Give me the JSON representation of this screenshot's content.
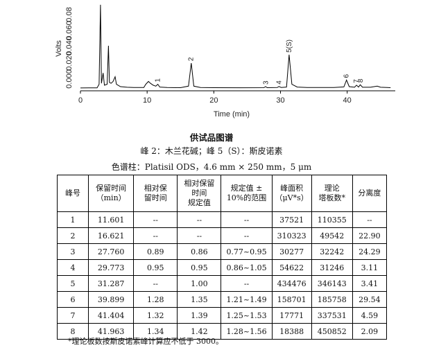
{
  "chart_data": {
    "type": "line",
    "xlabel": "Time (min)",
    "ylabel": "Volts",
    "x_ticks": [
      0,
      10,
      20,
      30,
      40
    ],
    "y_ticks": [
      "0.000",
      "0.020",
      "0.040",
      "0.060",
      "0.08"
    ],
    "xlim": [
      0,
      47
    ],
    "ylim": [
      0,
      0.09
    ],
    "peak_labels": [
      {
        "label": "1",
        "x": 11.6
      },
      {
        "label": "2",
        "x": 16.6
      },
      {
        "label": "3",
        "x": 27.8
      },
      {
        "label": "4",
        "x": 29.8
      },
      {
        "label": "5(S)",
        "x": 31.3
      },
      {
        "label": "6",
        "x": 39.9
      },
      {
        "label": "7",
        "x": 41.4
      },
      {
        "label": "8",
        "x": 42.0
      }
    ],
    "trace": [
      [
        0,
        0.0001
      ],
      [
        2.5,
        0.0002
      ],
      [
        2.8,
        0.004
      ],
      [
        3.0,
        0.0886
      ],
      [
        3.15,
        0.005
      ],
      [
        3.4,
        0.016
      ],
      [
        3.6,
        0.003
      ],
      [
        4.0,
        0.004
      ],
      [
        4.2,
        0.045
      ],
      [
        4.35,
        0.006
      ],
      [
        4.6,
        0.005
      ],
      [
        4.9,
        0.007
      ],
      [
        5.2,
        0.012
      ],
      [
        5.4,
        0.004
      ],
      [
        6,
        0.0015
      ],
      [
        7,
        0.0008
      ],
      [
        8,
        0.0005
      ],
      [
        9.5,
        0.0006
      ],
      [
        9.8,
        0.004
      ],
      [
        10.2,
        0.007
      ],
      [
        10.5,
        0.005
      ],
      [
        10.9,
        0.003
      ],
      [
        11.3,
        0.002
      ],
      [
        11.6,
        0.004
      ],
      [
        11.9,
        0.001
      ],
      [
        13,
        0.0005
      ],
      [
        15,
        0.0004
      ],
      [
        16.2,
        0.002
      ],
      [
        16.62,
        0.0265
      ],
      [
        17.0,
        0.002
      ],
      [
        18,
        0.0005
      ],
      [
        20,
        0.0004
      ],
      [
        24,
        0.0003
      ],
      [
        27.5,
        0.0004
      ],
      [
        27.76,
        0.0015
      ],
      [
        28.0,
        0.0004
      ],
      [
        29.5,
        0.0005
      ],
      [
        29.77,
        0.0016
      ],
      [
        30.1,
        0.0006
      ],
      [
        30.9,
        0.001
      ],
      [
        31.29,
        0.0355
      ],
      [
        31.7,
        0.004
      ],
      [
        32.5,
        0.001
      ],
      [
        34,
        0.0006
      ],
      [
        36,
        0.0005
      ],
      [
        38,
        0.0006
      ],
      [
        39.5,
        0.0012
      ],
      [
        39.9,
        0.0085
      ],
      [
        40.3,
        0.0015
      ],
      [
        41.1,
        0.0008
      ],
      [
        41.4,
        0.003
      ],
      [
        41.7,
        0.001
      ],
      [
        41.96,
        0.0035
      ],
      [
        42.3,
        0.0008
      ],
      [
        43.5,
        0.0008
      ],
      [
        44.5,
        0.002
      ],
      [
        45,
        0.0008
      ],
      [
        46,
        0.0005
      ],
      [
        46.5,
        0.0004
      ]
    ]
  },
  "captions": {
    "title": "供试品图谱",
    "peaks": "峰 2：木兰花碱；峰 5（S）：斯皮诺素",
    "column": "色谱柱：Platisil ODS，4.6 mm × 250 mm，5 μm"
  },
  "table": {
    "headers": [
      [
        "峰号"
      ],
      [
        "保留时间",
        "（min）"
      ],
      [
        "相对保",
        "留时间"
      ],
      [
        "相对保留",
        "时间",
        "规定值"
      ],
      [
        "规定值 ±",
        "10%的范围"
      ],
      [
        "峰面积",
        "（μV*s）"
      ],
      [
        "理论",
        "塔板数*"
      ],
      [
        "分离度"
      ]
    ],
    "rows": [
      [
        "1",
        "11.601",
        "--",
        "--",
        "--",
        "37521",
        "110355",
        "--"
      ],
      [
        "2",
        "16.621",
        "--",
        "--",
        "--",
        "310323",
        "49542",
        "22.90"
      ],
      [
        "3",
        "27.760",
        "0.89",
        "0.86",
        "0.77~0.95",
        "30277",
        "32242",
        "24.29"
      ],
      [
        "4",
        "29.773",
        "0.95",
        "0.95",
        "0.86~1.05",
        "54622",
        "31246",
        "3.11"
      ],
      [
        "5",
        "31.287",
        "--",
        "1.00",
        "--",
        "434476",
        "346143",
        "3.41"
      ],
      [
        "6",
        "39.899",
        "1.28",
        "1.35",
        "1.21~1.49",
        "158701",
        "185758",
        "29.54"
      ],
      [
        "7",
        "41.404",
        "1.32",
        "1.39",
        "1.25~1.53",
        "17771",
        "337531",
        "4.59"
      ],
      [
        "8",
        "41.963",
        "1.34",
        "1.42",
        "1.28~1.56",
        "18388",
        "450852",
        "2.09"
      ]
    ]
  },
  "footnote": "*理论板数按斯皮诺素峰计算应不低于 3000。"
}
